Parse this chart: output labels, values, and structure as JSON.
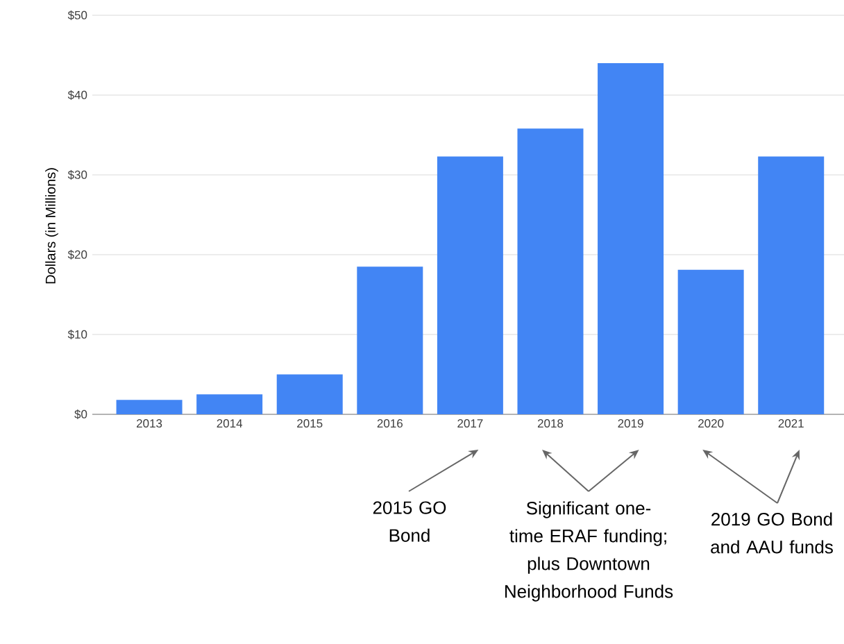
{
  "chart_data": {
    "type": "bar",
    "ylabel": "Dollars (in Millions)",
    "categories": [
      "2013",
      "2014",
      "2015",
      "2016",
      "2017",
      "2018",
      "2019",
      "2020",
      "2021"
    ],
    "values": [
      1.8,
      2.5,
      5.0,
      18.5,
      32.3,
      35.8,
      44.0,
      18.1,
      32.3
    ],
    "color": "#4285f4",
    "ylim": [
      0,
      50
    ],
    "yticks": [
      {
        "value": 0,
        "label": "$0"
      },
      {
        "value": 10,
        "label": "$10"
      },
      {
        "value": 20,
        "label": "$20"
      },
      {
        "value": 30,
        "label": "$30"
      },
      {
        "value": 40,
        "label": "$40"
      },
      {
        "value": 50,
        "label": "$50"
      }
    ],
    "grid": "y",
    "legend": false,
    "annotations": [
      "2015 GO Bond",
      "Significant one-time ERAF funding; plus Downtown Neighborhood Funds",
      "2019 GO Bond and AAU funds"
    ]
  }
}
